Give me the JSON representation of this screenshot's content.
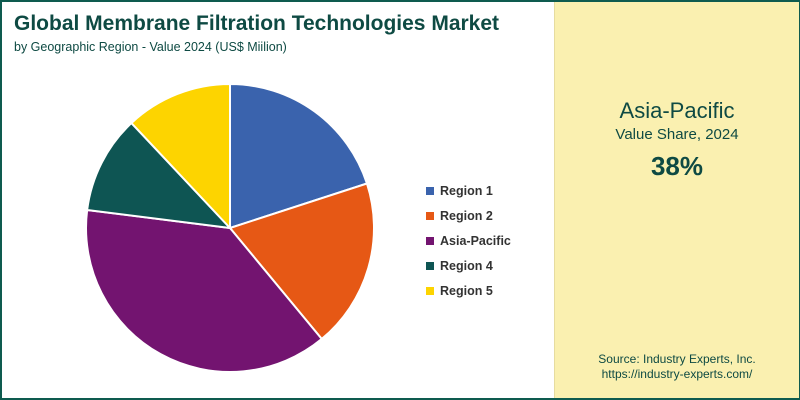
{
  "chart_data": {
    "type": "pie",
    "title": "Global Membrane Filtration Technologies Market",
    "subtitle": "by Geographic Region - Value 2024 (US$ Miilion)",
    "categories": [
      "Region 1",
      "Region 2",
      "Asia-Pacific",
      "Region 4",
      "Region 5"
    ],
    "values": [
      20,
      19,
      38,
      11,
      12
    ],
    "colors": [
      "#3a63ad",
      "#e65815",
      "#731470",
      "#0e5553",
      "#fdd400"
    ],
    "legend_position": "right",
    "start_angle_deg": 0,
    "direction": "clockwise"
  },
  "highlight": {
    "region": "Asia-Pacific",
    "label": "Value Share, 2024",
    "value": "38%"
  },
  "source": {
    "line1": "Source: Industry Experts, Inc.",
    "line2": "https://industry-experts.com/"
  },
  "colors": {
    "border": "#0e5b4f",
    "panel": "#faf0b0",
    "text": "#0e4a43"
  }
}
